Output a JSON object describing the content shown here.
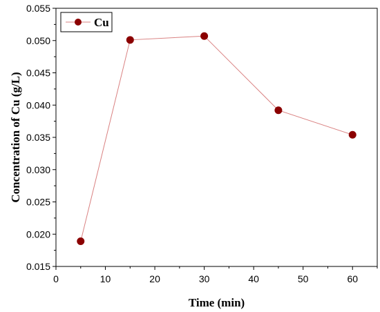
{
  "chart_data": {
    "type": "line",
    "xlabel": "Time (min)",
    "ylabel": "Concentration of Cu (g/L)",
    "xlim": [
      0,
      65
    ],
    "ylim": [
      0.015,
      0.055
    ],
    "xticks": [
      "0",
      "10",
      "20",
      "30",
      "40",
      "50",
      "60"
    ],
    "yticks": [
      "0.015",
      "0.020",
      "0.025",
      "0.030",
      "0.035",
      "0.040",
      "0.045",
      "0.050",
      "0.055"
    ],
    "grid": false,
    "legend_position": "top-left",
    "series": [
      {
        "name": "Cu",
        "color": "#8b0000",
        "line_color": "#d98080",
        "marker": "circle",
        "x": [
          5,
          15,
          30,
          45,
          60
        ],
        "y": [
          0.0189,
          0.0501,
          0.0507,
          0.0392,
          0.0354
        ]
      }
    ]
  }
}
